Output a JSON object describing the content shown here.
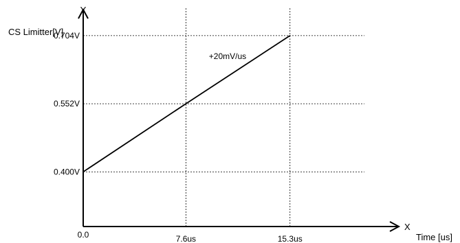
{
  "chart_data": {
    "type": "line",
    "ylabel": "CS Limitter[V]",
    "xlabel": "Time [us]",
    "y_axis_letter": "Y",
    "x_axis_letter": "X",
    "xlim": [
      0,
      23.25
    ],
    "ylim": [
      0.278,
      0.762
    ],
    "x_ticks": [
      {
        "value": 0.0,
        "label": "0.0"
      },
      {
        "value": 7.6,
        "label": "7.6us"
      },
      {
        "value": 15.3,
        "label": "15.3us"
      }
    ],
    "y_ticks": [
      {
        "value": 0.4,
        "label": "0.400V"
      },
      {
        "value": 0.552,
        "label": "0.552V"
      },
      {
        "value": 0.704,
        "label": "0.704V"
      }
    ],
    "series": [
      {
        "x": [
          0.0,
          7.6,
          15.3
        ],
        "y": [
          0.4,
          0.552,
          0.704
        ]
      }
    ],
    "annotation": {
      "text": "+20mV/us",
      "x": 9.3,
      "y": 0.658
    },
    "grid": "dotted at tick values",
    "colors": {
      "line": "#000000",
      "grid": "#000000"
    }
  }
}
